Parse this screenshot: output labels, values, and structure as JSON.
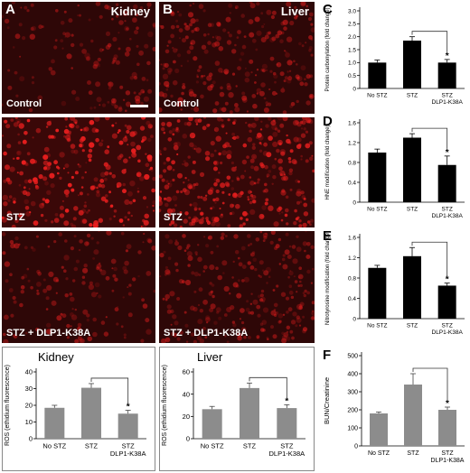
{
  "panel_letters": {
    "A": "A",
    "B": "B",
    "C": "C",
    "D": "D",
    "E": "E",
    "F": "F"
  },
  "micrographs": {
    "kidney_title": "Kidney",
    "liver_title": "Liver",
    "rows": [
      {
        "label": "Control"
      },
      {
        "label": "STZ"
      },
      {
        "label": "STZ + DLP1-K38A"
      }
    ],
    "colors": {
      "background": "#2a0606",
      "signal": "#d01818"
    }
  },
  "chart_data": [
    {
      "id": "kidney_ros",
      "type": "bar",
      "title": "Kidney",
      "categories": [
        "No STZ",
        "STZ",
        "STZ\nDLP1-K38A"
      ],
      "values": [
        18.5,
        30.5,
        15.0
      ],
      "errors": [
        1.5,
        2.5,
        2.0
      ],
      "ylabel": "ROS (ethidium fluorescence)",
      "ylim": [
        0,
        40
      ],
      "yticks": [
        0,
        10,
        20,
        30,
        40
      ],
      "bar_color": "#8c8c8c",
      "significance": "*"
    },
    {
      "id": "liver_ros",
      "type": "bar",
      "title": "Liver",
      "categories": [
        "No STZ",
        "STZ",
        "STZ\nDLP1-K38A"
      ],
      "values": [
        26.5,
        45.5,
        27.5
      ],
      "errors": [
        2.5,
        4.5,
        3.0
      ],
      "ylabel": "ROS (ethidium fluorescence)",
      "ylim": [
        0,
        60
      ],
      "yticks": [
        0,
        20,
        40,
        60
      ],
      "bar_color": "#8c8c8c",
      "significance": "*"
    },
    {
      "id": "protein_carbonylation",
      "type": "bar",
      "title": "",
      "categories": [
        "No STZ",
        "STZ",
        "STZ\nDLP1-K38A"
      ],
      "values": [
        1.0,
        1.85,
        1.0
      ],
      "errors": [
        0.1,
        0.15,
        0.12
      ],
      "ylabel": "Protein carbonylation (fold change)",
      "ylim": [
        0,
        3.0
      ],
      "yticks": [
        0,
        0.5,
        1.0,
        1.5,
        2.0,
        2.5,
        3.0
      ],
      "yticklabels": [
        "0",
        "0.5",
        "1.0",
        "1.5",
        "2.0",
        "2.5",
        "3.0"
      ],
      "bar_color": "#000000",
      "significance": "*"
    },
    {
      "id": "hne_modification",
      "type": "bar",
      "title": "",
      "categories": [
        "No STZ",
        "STZ",
        "STZ\nDLP1-K38A"
      ],
      "values": [
        1.0,
        1.3,
        0.75
      ],
      "errors": [
        0.07,
        0.08,
        0.18
      ],
      "ylabel": "HNE modification (fold change)",
      "ylim": [
        0,
        1.6
      ],
      "yticks": [
        0,
        0.4,
        0.8,
        1.2,
        1.6
      ],
      "yticklabels": [
        "0",
        "0.4",
        "0.8",
        "1.2",
        "1.6"
      ],
      "bar_color": "#000000",
      "significance": "*"
    },
    {
      "id": "nitrotyrosine_modification",
      "type": "bar",
      "title": "",
      "categories": [
        "No STZ",
        "STZ",
        "STZ\nDLP1-K38A"
      ],
      "values": [
        1.0,
        1.23,
        0.65
      ],
      "errors": [
        0.05,
        0.17,
        0.05
      ],
      "ylabel": "Nitrotyrosine modification (fold change)",
      "ylim": [
        0,
        1.6
      ],
      "yticks": [
        0,
        0.4,
        0.8,
        1.2,
        1.6
      ],
      "yticklabels": [
        "0",
        "0.4",
        "0.8",
        "1.2",
        "1.6"
      ],
      "bar_color": "#000000",
      "significance": "*"
    },
    {
      "id": "bun_creatinine",
      "type": "bar",
      "title": "",
      "categories": [
        "No STZ",
        "STZ",
        "STZ\nDLP1-K38A"
      ],
      "values": [
        180,
        340,
        200
      ],
      "errors": [
        8,
        60,
        15
      ],
      "ylabel": "BUN/Creatinine",
      "ylim": [
        0,
        500
      ],
      "yticks": [
        0,
        100,
        200,
        300,
        400,
        500
      ],
      "bar_color": "#8c8c8c",
      "significance": "*"
    }
  ]
}
